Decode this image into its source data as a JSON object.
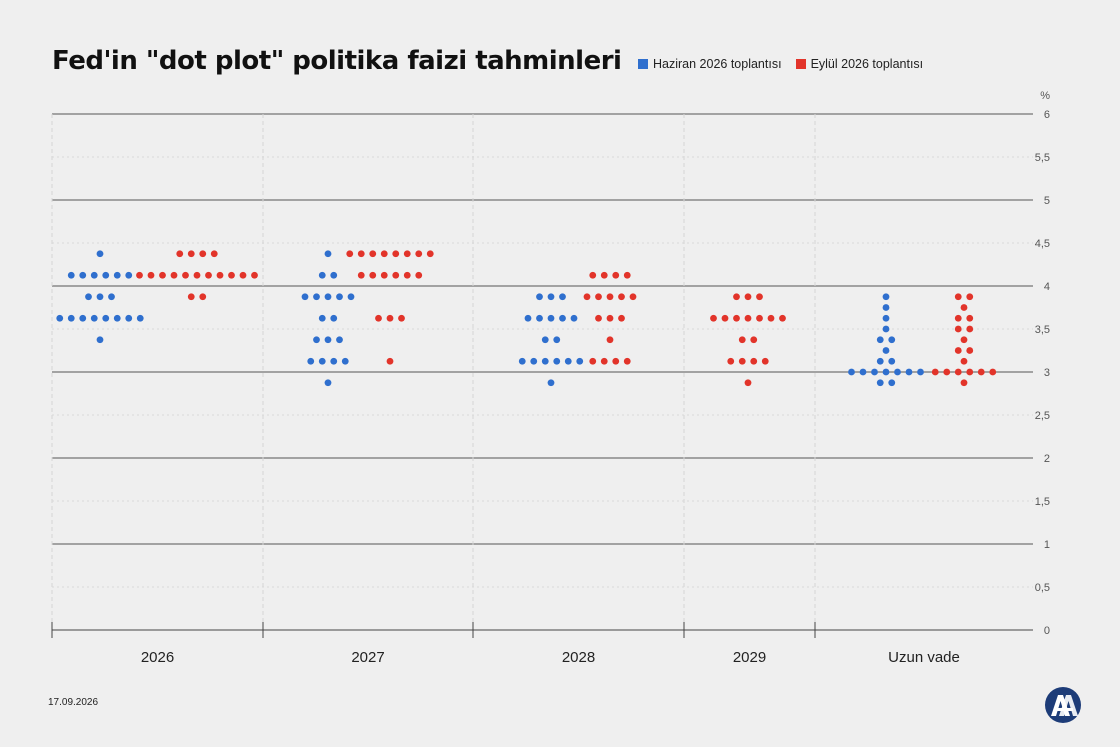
{
  "title": "Fed'in \"dot plot\" politika faizi tahminleri",
  "date": "17.09.2026",
  "legend": {
    "june": "Haziran 2026 toplantısı",
    "september": "Eylül 2026 toplantısı"
  },
  "colors": {
    "june": "#2f6fce",
    "september": "#e2342a"
  },
  "logo": {
    "icon": "aa-logo-icon",
    "text": "AA"
  },
  "chart_data": {
    "type": "scatter",
    "title": "Fed'in \"dot plot\" politika faizi tahminleri",
    "unit_label": "%",
    "ylim": [
      0,
      6
    ],
    "yticks": [
      "0",
      "0,5",
      "1",
      "1,5",
      "2",
      "2,5",
      "3",
      "3,5",
      "4",
      "4,5",
      "5",
      "5,5",
      "6"
    ],
    "grid": true,
    "legend_position": "top-right",
    "categories": [
      "2026",
      "2027",
      "2028",
      "2029",
      "Uzun vade"
    ],
    "series": [
      {
        "name": "Haziran 2026 toplantısı",
        "color": "#2f6fce",
        "values": [
          [
            {
              "y": 4.375,
              "n": 1
            },
            {
              "y": 4.125,
              "n": 6
            },
            {
              "y": 3.875,
              "n": 3
            },
            {
              "y": 3.625,
              "n": 8
            },
            {
              "y": 3.375,
              "n": 1
            }
          ],
          [
            {
              "y": 4.375,
              "n": 1
            },
            {
              "y": 4.125,
              "n": 2
            },
            {
              "y": 3.875,
              "n": 5
            },
            {
              "y": 3.625,
              "n": 2
            },
            {
              "y": 3.375,
              "n": 3
            },
            {
              "y": 3.125,
              "n": 4
            },
            {
              "y": 2.875,
              "n": 1
            }
          ],
          [
            {
              "y": 3.875,
              "n": 3
            },
            {
              "y": 3.625,
              "n": 5
            },
            {
              "y": 3.375,
              "n": 2
            },
            {
              "y": 3.125,
              "n": 6
            },
            {
              "y": 2.875,
              "n": 1
            }
          ],
          [],
          [
            {
              "y": 3.875,
              "n": 1
            },
            {
              "y": 3.75,
              "n": 1
            },
            {
              "y": 3.625,
              "n": 1
            },
            {
              "y": 3.5,
              "n": 1
            },
            {
              "y": 3.375,
              "n": 2
            },
            {
              "y": 3.25,
              "n": 1
            },
            {
              "y": 3.125,
              "n": 2
            },
            {
              "y": 3.0,
              "n": 7
            },
            {
              "y": 2.875,
              "n": 2
            }
          ]
        ]
      },
      {
        "name": "Eylül 2026 toplantısı",
        "color": "#e2342a",
        "values": [
          [
            {
              "y": 4.375,
              "n": 4
            },
            {
              "y": 4.125,
              "n": 11
            },
            {
              "y": 3.875,
              "n": 2
            }
          ],
          [
            {
              "y": 4.375,
              "n": 8
            },
            {
              "y": 4.125,
              "n": 6
            },
            {
              "y": 3.625,
              "n": 3
            },
            {
              "y": 3.125,
              "n": 1
            }
          ],
          [
            {
              "y": 4.125,
              "n": 4
            },
            {
              "y": 3.875,
              "n": 5
            },
            {
              "y": 3.625,
              "n": 3
            },
            {
              "y": 3.375,
              "n": 1
            },
            {
              "y": 3.125,
              "n": 4
            }
          ],
          [
            {
              "y": 3.875,
              "n": 3
            },
            {
              "y": 3.625,
              "n": 7
            },
            {
              "y": 3.375,
              "n": 2
            },
            {
              "y": 3.125,
              "n": 4
            },
            {
              "y": 2.875,
              "n": 1
            }
          ],
          [
            {
              "y": 3.875,
              "n": 2
            },
            {
              "y": 3.75,
              "n": 1
            },
            {
              "y": 3.625,
              "n": 2
            },
            {
              "y": 3.5,
              "n": 2
            },
            {
              "y": 3.375,
              "n": 1
            },
            {
              "y": 3.25,
              "n": 2
            },
            {
              "y": 3.125,
              "n": 1
            },
            {
              "y": 3.0,
              "n": 6
            },
            {
              "y": 2.875,
              "n": 1
            }
          ]
        ]
      }
    ]
  }
}
